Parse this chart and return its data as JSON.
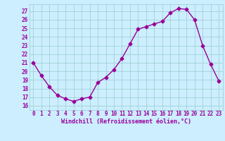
{
  "x": [
    0,
    1,
    2,
    3,
    4,
    5,
    6,
    7,
    8,
    9,
    10,
    11,
    12,
    13,
    14,
    15,
    16,
    17,
    18,
    19,
    20,
    21,
    22,
    23
  ],
  "y": [
    21,
    19.5,
    18.2,
    17.2,
    16.8,
    16.5,
    16.8,
    17.0,
    18.7,
    19.3,
    20.2,
    21.5,
    23.2,
    24.9,
    25.2,
    25.5,
    25.8,
    26.8,
    27.3,
    27.2,
    26.0,
    23.0,
    20.8,
    18.9
  ],
  "color": "#990099",
  "bg_color": "#cceeff",
  "grid_color": "#99cccc",
  "xlabel": "Windchill (Refroidissement éolien,°C)",
  "xlabel_color": "#990099",
  "ylim": [
    15.5,
    27.8
  ],
  "yticks": [
    16,
    17,
    18,
    19,
    20,
    21,
    22,
    23,
    24,
    25,
    26,
    27
  ],
  "xlim": [
    -0.5,
    23.5
  ],
  "marker": "D",
  "marker_size": 2.5,
  "line_width": 1.0,
  "tick_fontsize": 5.5,
  "xlabel_fontsize": 6.0
}
